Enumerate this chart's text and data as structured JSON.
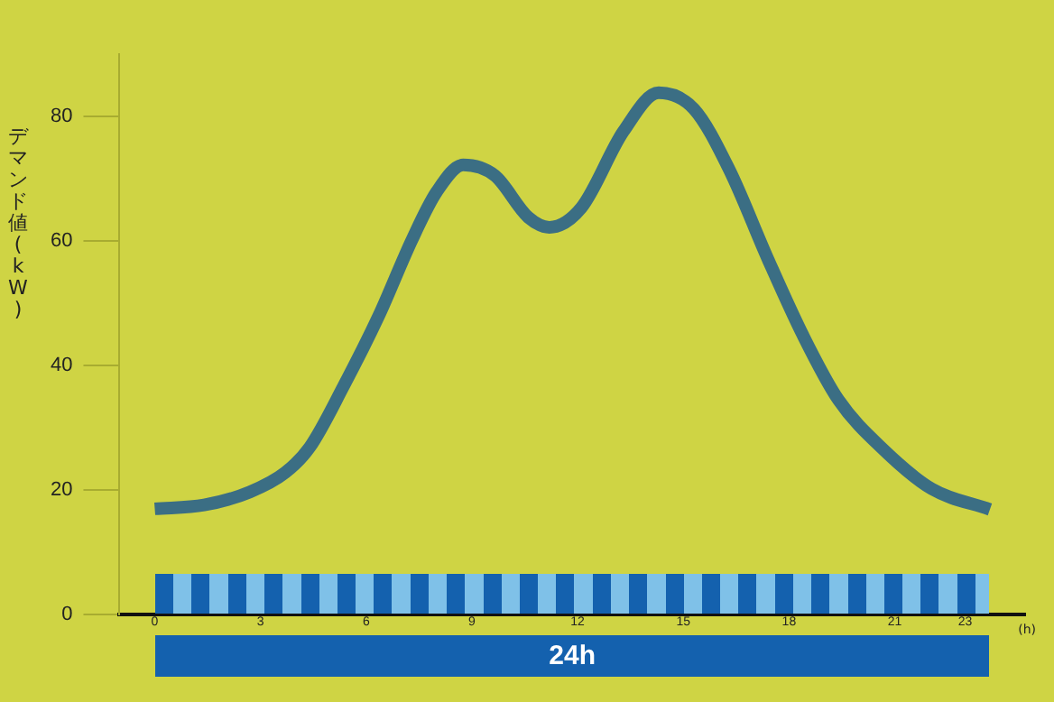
{
  "chart_data": {
    "type": "line",
    "ylabel": "デマンド値(kW)",
    "xlabel": "(h)",
    "annotations": [
      "24h"
    ],
    "x": [
      0,
      1.4,
      2.7,
      3.7,
      4.4,
      5.35,
      6.35,
      7.3,
      8.0,
      8.75,
      9.65,
      10.6,
      11.2,
      12.1,
      13.3,
      14.3,
      15.3,
      16.3,
      17.4,
      18.4,
      19.4,
      20.7,
      22.05,
      23.7
    ],
    "series": [
      {
        "color": "#3b6e84",
        "values": [
          17,
          17.6,
          19.7,
          22.8,
          26.9,
          36.6,
          47.9,
          60.2,
          67.9,
          72.2,
          70.5,
          63.8,
          62.2,
          65.3,
          77.6,
          83.8,
          81.2,
          71.5,
          57.1,
          44.8,
          34.5,
          26.4,
          20.2,
          16.9
        ]
      }
    ],
    "xlim": [
      -1,
      24.7
    ],
    "xticks": [
      0,
      3,
      6,
      9,
      12,
      15,
      18,
      21,
      23
    ],
    "ylim": [
      0,
      90
    ],
    "yticks": [
      0,
      20,
      40,
      60,
      80
    ],
    "grid": false,
    "legend": false,
    "marker": "none",
    "line_style": "solid"
  }
}
